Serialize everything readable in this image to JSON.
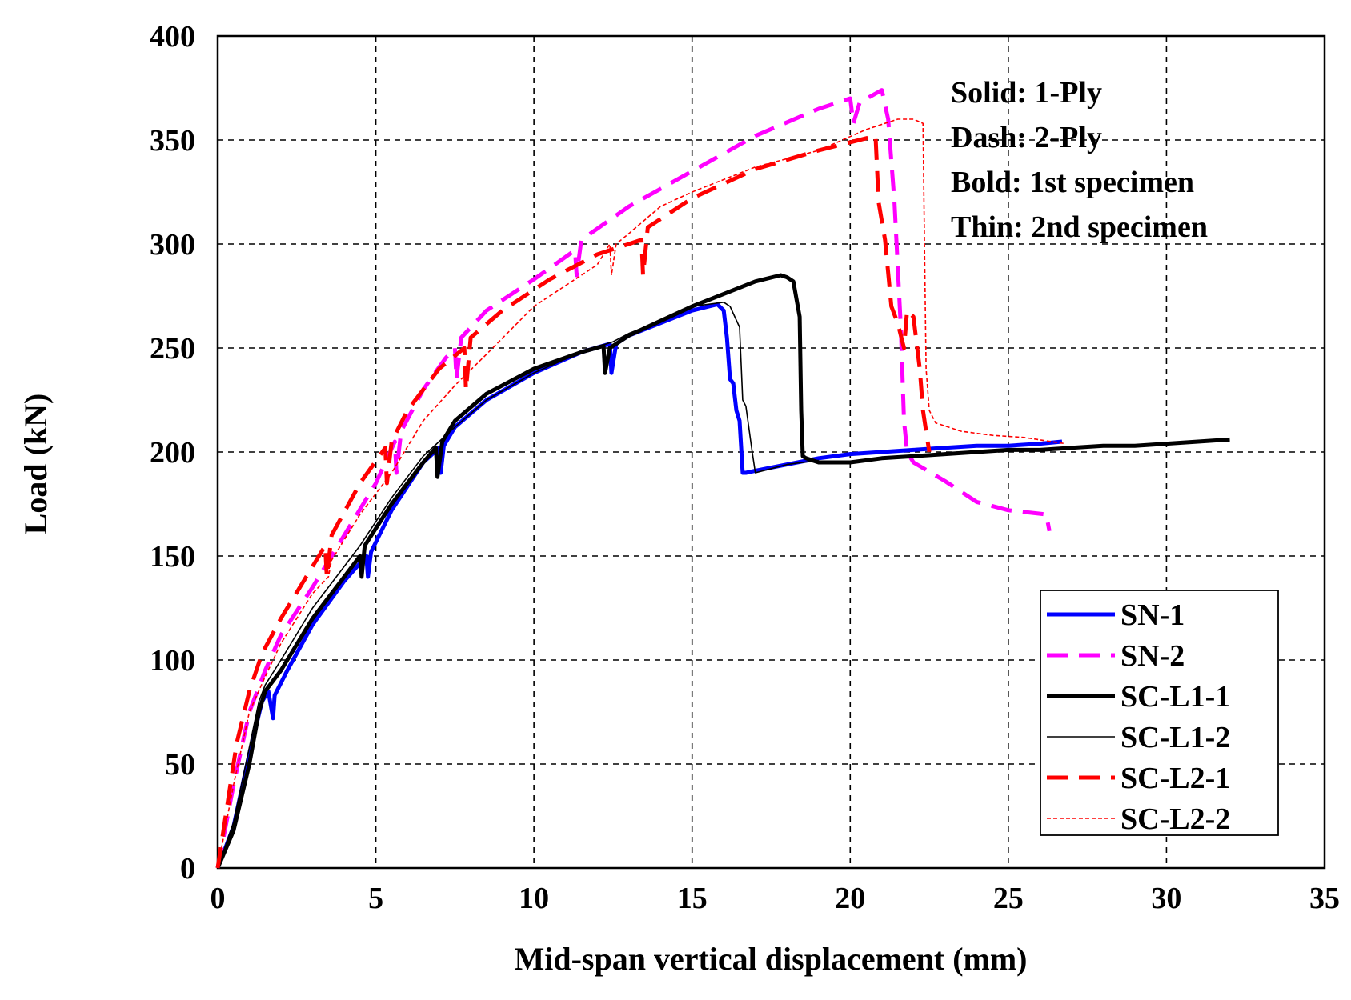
{
  "chart_data": {
    "type": "line",
    "title": "",
    "xlabel": "Mid-span vertical displacement (mm)",
    "ylabel": "Load (kN)",
    "xlim": [
      0,
      35
    ],
    "ylim": [
      0,
      400
    ],
    "xticks": [
      0,
      5,
      10,
      15,
      20,
      25,
      30,
      35
    ],
    "yticks": [
      0,
      50,
      100,
      150,
      200,
      250,
      300,
      350,
      400
    ],
    "grid": true,
    "annotations": [
      "Solid: 1-Ply",
      "Dash: 2-Ply",
      "Bold: 1st specimen",
      "Thin: 2nd specimen"
    ],
    "legend_position": "bottom-right",
    "series": [
      {
        "name": "SN-1",
        "color": "#0000ff",
        "style": "solid",
        "weight": "bold",
        "x": [
          0,
          0.5,
          1.0,
          1.4,
          1.6,
          1.75,
          1.8,
          2.2,
          3.0,
          4.0,
          4.7,
          4.75,
          4.85,
          5.5,
          6.5,
          7.0,
          7.05,
          7.15,
          7.5,
          8.5,
          10.0,
          11.5,
          12.4,
          12.45,
          12.6,
          13.0,
          14.0,
          15.0,
          15.8,
          16.0,
          16.1,
          16.2,
          16.3,
          16.4,
          16.5,
          16.6,
          16.7,
          17.0,
          18.0,
          19.0,
          20.0,
          21.0,
          22.0,
          23.0,
          24.0,
          25.0,
          26.0,
          26.7
        ],
        "y": [
          0,
          20,
          55,
          80,
          85,
          72,
          83,
          95,
          117,
          138,
          150,
          140,
          152,
          172,
          195,
          202,
          190,
          203,
          212,
          225,
          238,
          248,
          252,
          238,
          252,
          256,
          262,
          268,
          271,
          268,
          255,
          235,
          233,
          220,
          215,
          190,
          190,
          191,
          194,
          197,
          199,
          200,
          201,
          202,
          203,
          203,
          204,
          205
        ]
      },
      {
        "name": "SN-2",
        "color": "#ff00ff",
        "style": "dash",
        "weight": "bold",
        "x": [
          0,
          0.5,
          1.0,
          1.5,
          2.0,
          3.0,
          4.0,
          5.0,
          5.6,
          5.65,
          5.8,
          6.5,
          7.2,
          7.5,
          7.55,
          7.7,
          8.5,
          10.0,
          11.3,
          11.35,
          11.5,
          13.0,
          15.0,
          17.0,
          19.0,
          20.0,
          20.1,
          20.3,
          21.0,
          21.2,
          21.4,
          21.6,
          21.7,
          21.8,
          22.0,
          23.0,
          24.0,
          25.0,
          26.2,
          26.3
        ],
        "y": [
          0,
          40,
          75,
          95,
          112,
          135,
          160,
          185,
          205,
          190,
          210,
          230,
          245,
          250,
          235,
          255,
          268,
          283,
          297,
          285,
          302,
          318,
          335,
          352,
          365,
          370,
          358,
          368,
          374,
          360,
          320,
          260,
          215,
          200,
          195,
          186,
          176,
          172,
          170,
          162
        ]
      },
      {
        "name": "SC-L1-1",
        "color": "#000000",
        "style": "solid",
        "weight": "bold",
        "x": [
          0,
          0.5,
          1.0,
          1.3,
          1.5,
          2.0,
          3.0,
          4.0,
          4.5,
          4.55,
          4.65,
          5.5,
          6.5,
          6.9,
          6.95,
          7.1,
          7.5,
          8.5,
          10.0,
          11.5,
          12.2,
          12.25,
          12.4,
          13.0,
          14.0,
          15.0,
          16.0,
          17.0,
          17.8,
          18.0,
          18.2,
          18.4,
          18.45,
          18.5,
          18.6,
          19.0,
          20.0,
          21.0,
          22.0,
          23.0,
          24.0,
          25.0,
          26.0,
          27.0,
          28.0,
          29.0,
          30.0,
          31.0,
          32.0
        ],
        "y": [
          0,
          18,
          50,
          75,
          85,
          95,
          120,
          140,
          150,
          140,
          155,
          175,
          195,
          202,
          188,
          205,
          215,
          228,
          240,
          248,
          251,
          238,
          250,
          256,
          263,
          270,
          276,
          282,
          285,
          284,
          282,
          265,
          220,
          198,
          197,
          195,
          195,
          197,
          198,
          199,
          200,
          201,
          201,
          202,
          203,
          203,
          204,
          205,
          206
        ]
      },
      {
        "name": "SC-L1-2",
        "color": "#000000",
        "style": "solid",
        "weight": "thin",
        "x": [
          0,
          0.5,
          1.0,
          1.3,
          1.5,
          2.0,
          3.0,
          4.0,
          4.5,
          5.5,
          6.5,
          7.0,
          7.5,
          8.5,
          10.0,
          11.5,
          12.5,
          13.0,
          14.0,
          15.0,
          16.0,
          16.2,
          16.5,
          16.6,
          16.7,
          16.9,
          17.0,
          17.5,
          18.0,
          19.0
        ],
        "y": [
          0,
          22,
          58,
          80,
          88,
          100,
          125,
          145,
          155,
          178,
          198,
          205,
          212,
          225,
          238,
          248,
          253,
          257,
          263,
          270,
          272,
          270,
          260,
          225,
          222,
          200,
          190,
          192,
          194,
          196
        ]
      },
      {
        "name": "SC-L2-1",
        "color": "#ff0000",
        "style": "dash",
        "weight": "bold",
        "x": [
          0,
          0.3,
          0.6,
          1.0,
          1.4,
          2.0,
          3.0,
          3.4,
          3.45,
          3.6,
          4.5,
          5.3,
          5.35,
          5.5,
          6.0,
          7.0,
          7.8,
          7.85,
          8.0,
          9.0,
          10.5,
          12.0,
          13.4,
          13.45,
          13.6,
          15.0,
          17.0,
          19.0,
          20.8,
          20.9,
          21.1,
          21.3,
          21.5,
          21.7,
          21.8,
          22.0,
          22.2,
          22.3,
          22.4,
          22.5
        ],
        "y": [
          0,
          30,
          60,
          85,
          103,
          120,
          145,
          155,
          140,
          160,
          185,
          202,
          185,
          205,
          220,
          240,
          250,
          230,
          255,
          268,
          283,
          295,
          302,
          285,
          308,
          322,
          336,
          345,
          352,
          320,
          302,
          270,
          262,
          250,
          268,
          265,
          240,
          220,
          210,
          200
        ]
      },
      {
        "name": "SC-L2-2",
        "color": "#ff0000",
        "style": "dot",
        "weight": "thin",
        "x": [
          0,
          0.5,
          1.0,
          1.5,
          2.0,
          3.0,
          3.5,
          3.6,
          4.5,
          5.5,
          6.5,
          7.5,
          8.5,
          10.0,
          12.0,
          12.4,
          12.45,
          12.6,
          13.0,
          14.0,
          15.0,
          17.0,
          19.0,
          20.5,
          21.5,
          22.0,
          22.3,
          22.35,
          22.4,
          22.5,
          22.7,
          23.5,
          24.5,
          25.5,
          26.8
        ],
        "y": [
          0,
          40,
          75,
          92,
          108,
          132,
          140,
          148,
          170,
          190,
          215,
          232,
          247,
          270,
          290,
          300,
          285,
          300,
          305,
          318,
          325,
          337,
          345,
          355,
          360,
          360,
          358,
          300,
          240,
          220,
          214,
          210,
          208,
          207,
          204
        ]
      }
    ]
  }
}
